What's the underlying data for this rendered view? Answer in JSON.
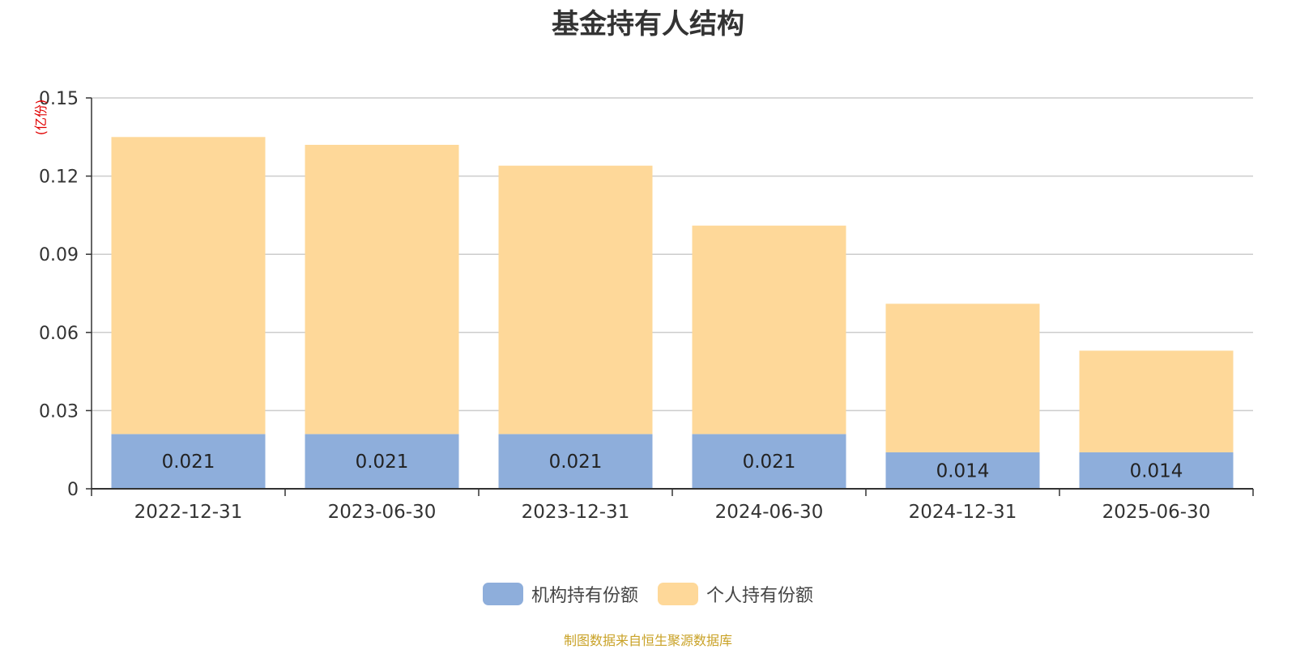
{
  "chart_data": {
    "type": "bar",
    "stacked": true,
    "title": "基金持有人结构",
    "ylabel": "(亿份)",
    "ylim": [
      0,
      0.15
    ],
    "yticks": [
      "0",
      "0.03",
      "0.06",
      "0.09",
      "0.12",
      "0.15"
    ],
    "grid": true,
    "legend_position": "bottom",
    "categories": [
      "2022-12-31",
      "2023-06-30",
      "2023-12-31",
      "2024-06-30",
      "2024-12-31",
      "2025-06-30"
    ],
    "series": [
      {
        "name": "机构持有份额",
        "color": "#8eaedb",
        "values": [
          0.021,
          0.021,
          0.021,
          0.021,
          0.014,
          0.014
        ],
        "labels": [
          "0.021",
          "0.021",
          "0.021",
          "0.021",
          "0.014",
          "0.014"
        ]
      },
      {
        "name": "个人持有份额",
        "color": "#fed899",
        "values": [
          0.114,
          0.111,
          0.103,
          0.08,
          0.057,
          0.039
        ]
      }
    ]
  },
  "source_note": "制图数据来自恒生聚源数据库"
}
